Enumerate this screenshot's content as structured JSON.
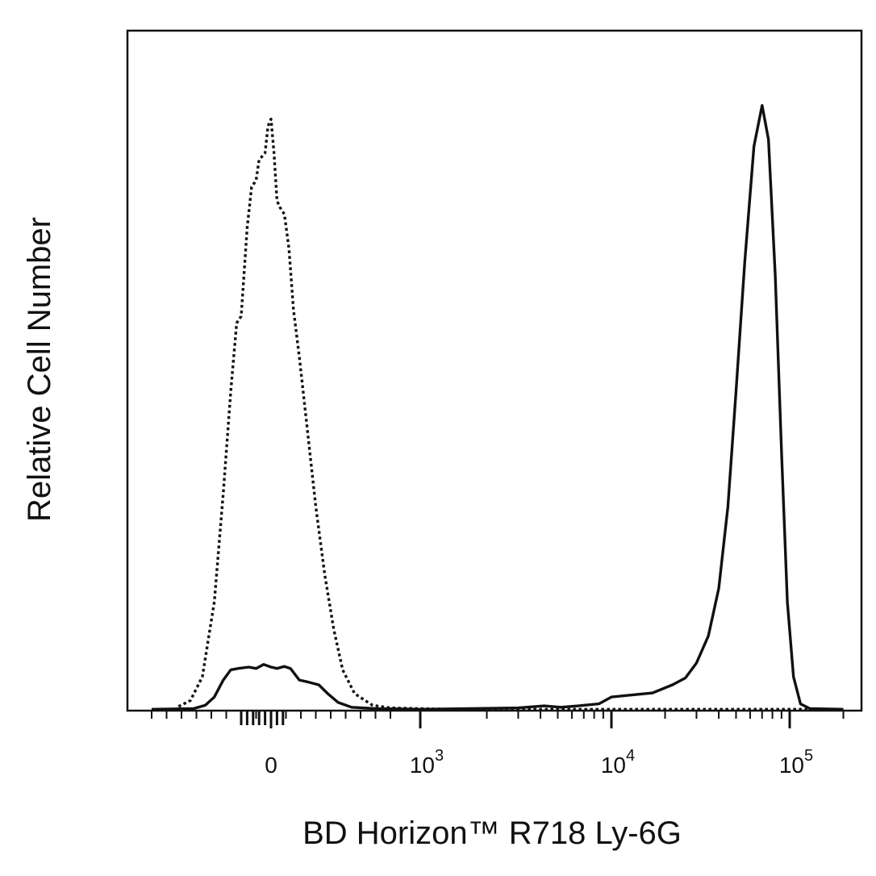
{
  "chart_data": {
    "type": "line",
    "title": "",
    "xlabel": "BD Horizon™ R718 Ly-6G",
    "ylabel": "Relative Cell Number",
    "x_scale": "biexponential",
    "xlim": [
      -800,
      200000
    ],
    "ylim": [
      0,
      100
    ],
    "grid": false,
    "legend": "none",
    "x_tick_labels": [
      {
        "value": 0,
        "base": "0",
        "exp": ""
      },
      {
        "value": 1000,
        "base": "10",
        "exp": "3"
      },
      {
        "value": 10000,
        "base": "10",
        "exp": "4"
      },
      {
        "value": 100000,
        "base": "10",
        "exp": "5"
      }
    ],
    "series": [
      {
        "style": "dotted",
        "color": "#111111",
        "points": [
          [
            -620,
            0.6
          ],
          [
            -540,
            1.5
          ],
          [
            -460,
            5
          ],
          [
            -380,
            16
          ],
          [
            -320,
            32
          ],
          [
            -270,
            47
          ],
          [
            -230,
            57
          ],
          [
            -200,
            58
          ],
          [
            -160,
            71
          ],
          [
            -130,
            77
          ],
          [
            -100,
            78
          ],
          [
            -80,
            81
          ],
          [
            -40,
            82
          ],
          [
            -20,
            86
          ],
          [
            0,
            87
          ],
          [
            20,
            82
          ],
          [
            40,
            75
          ],
          [
            60,
            74
          ],
          [
            90,
            73
          ],
          [
            120,
            68
          ],
          [
            150,
            59
          ],
          [
            190,
            52
          ],
          [
            240,
            42
          ],
          [
            300,
            30
          ],
          [
            360,
            20
          ],
          [
            420,
            12
          ],
          [
            480,
            6
          ],
          [
            560,
            2.5
          ],
          [
            680,
            0.8
          ],
          [
            800,
            0.4
          ],
          [
            1200,
            0.2
          ],
          [
            3000,
            0.2
          ],
          [
            20000,
            0.2
          ],
          [
            200000,
            0.2
          ]
        ]
      },
      {
        "style": "solid",
        "color": "#111111",
        "points": [
          [
            -800,
            0.2
          ],
          [
            -520,
            0.3
          ],
          [
            -440,
            0.8
          ],
          [
            -380,
            2
          ],
          [
            -320,
            4.5
          ],
          [
            -270,
            6
          ],
          [
            -220,
            6.2
          ],
          [
            -150,
            6.4
          ],
          [
            -100,
            6.2
          ],
          [
            -50,
            6.8
          ],
          [
            0,
            6.4
          ],
          [
            40,
            6.2
          ],
          [
            90,
            6.5
          ],
          [
            130,
            6.2
          ],
          [
            190,
            4.5
          ],
          [
            250,
            4.2
          ],
          [
            320,
            3.8
          ],
          [
            380,
            2.5
          ],
          [
            450,
            1.2
          ],
          [
            540,
            0.5
          ],
          [
            700,
            0.3
          ],
          [
            1000,
            0.2
          ],
          [
            3000,
            0.4
          ],
          [
            4200,
            0.7
          ],
          [
            5200,
            0.5
          ],
          [
            6500,
            0.7
          ],
          [
            8500,
            1.0
          ],
          [
            10000,
            2.0
          ],
          [
            13000,
            2.3
          ],
          [
            17000,
            2.6
          ],
          [
            22000,
            3.8
          ],
          [
            26000,
            4.8
          ],
          [
            30000,
            7
          ],
          [
            35000,
            11
          ],
          [
            40000,
            18
          ],
          [
            45000,
            30
          ],
          [
            50000,
            47
          ],
          [
            56000,
            66
          ],
          [
            63000,
            83
          ],
          [
            70000,
            89
          ],
          [
            76000,
            84
          ],
          [
            83000,
            64
          ],
          [
            90000,
            38
          ],
          [
            97000,
            16
          ],
          [
            105000,
            5
          ],
          [
            115000,
            1
          ],
          [
            130000,
            0.3
          ],
          [
            200000,
            0.2
          ]
        ]
      }
    ]
  }
}
